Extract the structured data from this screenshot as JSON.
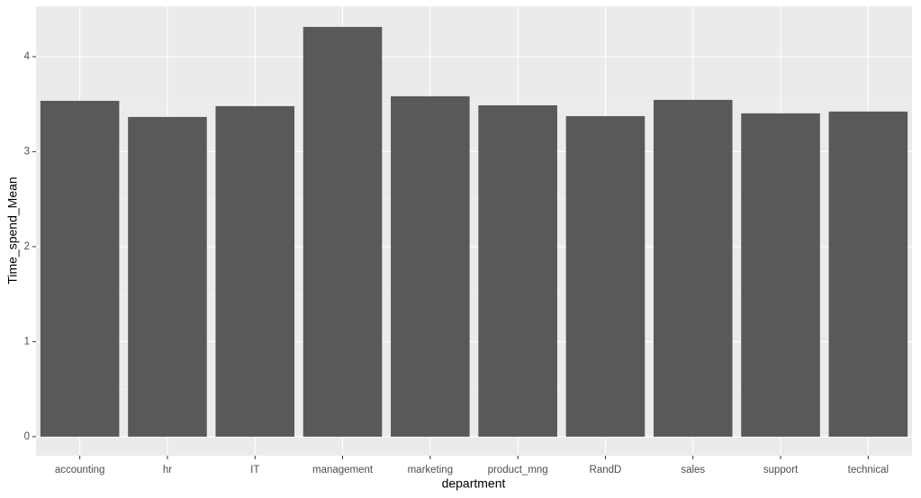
{
  "chart_data": {
    "type": "bar",
    "x_label": "department",
    "y_label": "Time_spend_Mean",
    "categories": [
      "accounting",
      "hr",
      "IT",
      "management",
      "marketing",
      "product_mng",
      "RandD",
      "sales",
      "support",
      "technical"
    ],
    "values": [
      3.535,
      3.365,
      3.479,
      4.313,
      3.583,
      3.488,
      3.374,
      3.545,
      3.403,
      3.422
    ],
    "color": "#595959",
    "ylim": [
      -0.2,
      4.53
    ],
    "yticks": [
      0,
      1,
      2,
      3,
      4
    ],
    "grid": true
  }
}
